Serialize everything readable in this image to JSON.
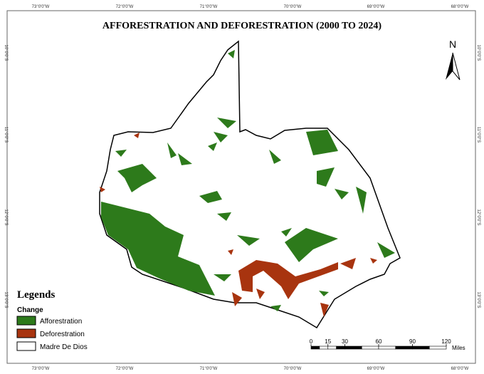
{
  "title": "AFFORESTRATION AND DEFORESTRATION (2000 TO 2024)",
  "graticule": {
    "longitudes": [
      "73°0'0\"W",
      "72°0'0\"W",
      "71°0'0\"W",
      "70°0'0\"W",
      "69°0'0\"W",
      "68°0'0\"W"
    ],
    "latitudes": [
      "10°0'0\"S",
      "11°0'0\"S",
      "12°0'0\"S",
      "13°0'0\"S"
    ]
  },
  "north_arrow": "N",
  "legend": {
    "title": "Legends",
    "subtitle": "Change",
    "items": [
      {
        "label": "Afforestration",
        "color": "#2d7a1b"
      },
      {
        "label": "Deforestration",
        "color": "#a8340f"
      },
      {
        "label": "Madre De Dios",
        "color": "#ffffff"
      }
    ]
  },
  "scale_bar": {
    "ticks": [
      0,
      15,
      30,
      60,
      90,
      120
    ],
    "unit": "Miles"
  }
}
